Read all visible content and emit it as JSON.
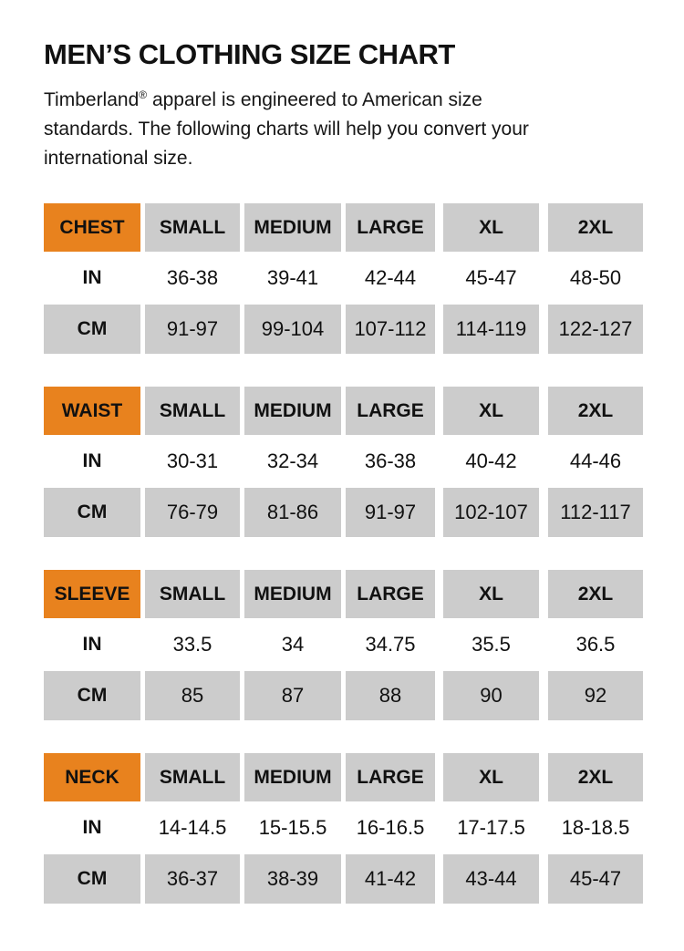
{
  "page": {
    "title": "MEN’S CLOTHING SIZE CHART",
    "intro": {
      "line1_brand": "Timberland",
      "line1_reg": "®",
      "line1_rest": " apparel is engineered to American size",
      "line2": "standards. The following charts will help you convert your",
      "line3": "international size."
    }
  },
  "colors": {
    "accent_orange": "#E8821E",
    "cell_gray": "#CCCCCC",
    "text": "#111111",
    "background": "#FFFFFF"
  },
  "size_columns": [
    "SMALL",
    "MEDIUM",
    "LARGE",
    "XL",
    "2XL"
  ],
  "unit_rows": {
    "in": "IN",
    "cm": "CM"
  },
  "tables": [
    {
      "label": "CHEST",
      "in": [
        "36-38",
        "39-41",
        "42-44",
        "45-47",
        "48-50"
      ],
      "cm": [
        "91-97",
        "99-104",
        "107-112",
        "114-119",
        "122-127"
      ]
    },
    {
      "label": "WAIST",
      "in": [
        "30-31",
        "32-34",
        "36-38",
        "40-42",
        "44-46"
      ],
      "cm": [
        "76-79",
        "81-86",
        "91-97",
        "102-107",
        "112-117"
      ]
    },
    {
      "label": "SLEEVE",
      "in": [
        "33.5",
        "34",
        "34.75",
        "35.5",
        "36.5"
      ],
      "cm": [
        "85",
        "87",
        "88",
        "90",
        "92"
      ]
    },
    {
      "label": "NECK",
      "in": [
        "14-14.5",
        "15-15.5",
        "16-16.5",
        "17-17.5",
        "18-18.5"
      ],
      "cm": [
        "36-37",
        "38-39",
        "41-42",
        "43-44",
        "45-47"
      ]
    }
  ]
}
